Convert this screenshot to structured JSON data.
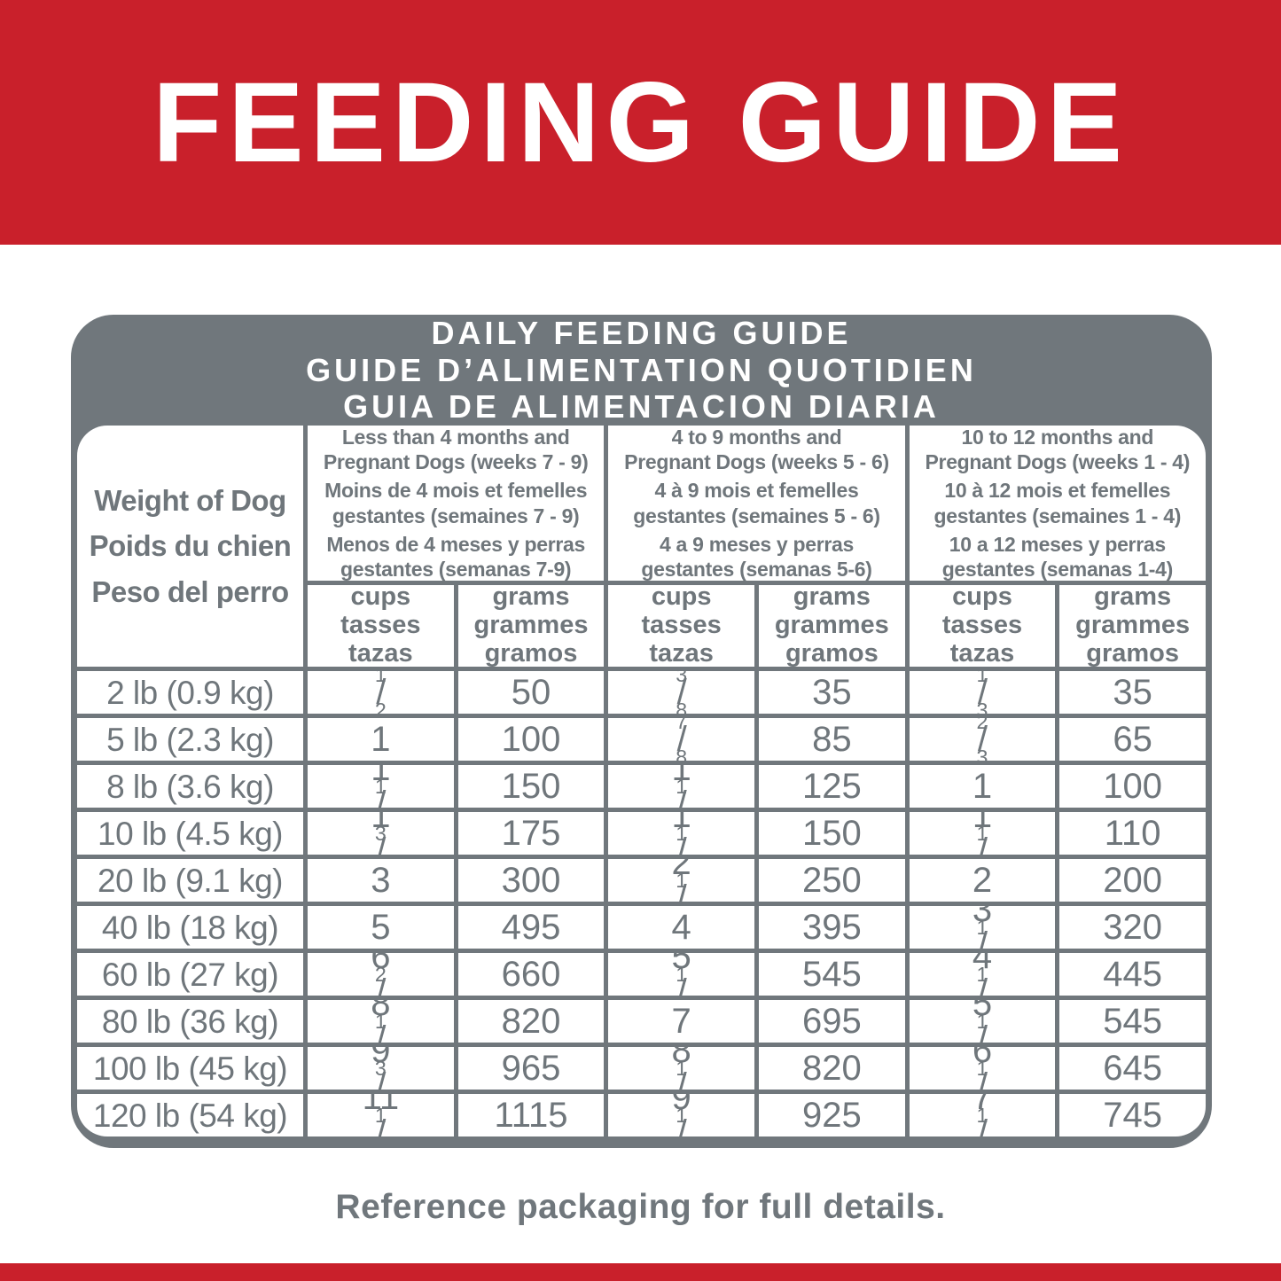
{
  "colors": {
    "brand_red": "#C9202B",
    "table_gray": "#70777C",
    "text_gray": "#6F767B"
  },
  "banner": {
    "title": "FEEDING GUIDE"
  },
  "table": {
    "title": "DAILY FEEDING GUIDE\nGUIDE D’ALIMENTATION QUOTIDIEN\nGUIA DE ALIMENTACION DIARIA",
    "weight_header": "Weight of Dog\nPoids du chien\nPeso del perro",
    "groups": [
      {
        "en": "Less than 4 months and\nPregnant Dogs (weeks 7 - 9)",
        "fr": "Moins de 4 mois et femelles\ngestantes (semaines 7 - 9)",
        "es": "Menos de 4 meses y perras\ngestantes (semanas 7-9)"
      },
      {
        "en": "4 to 9 months and\nPregnant Dogs (weeks 5 - 6)",
        "fr": "4 à 9 mois et femelles\ngestantes (semaines 5 - 6)",
        "es": "4 a 9 meses y perras\ngestantes (semanas 5-6)"
      },
      {
        "en": "10 to 12 months and\nPregnant Dogs (weeks 1 - 4)",
        "fr": "10 à 12 mois et femelles\ngestantes (semaines 1 - 4)",
        "es": "10 a 12 meses y perras\ngestantes (semanas 1-4)"
      }
    ],
    "unit_headers": {
      "cups": "cups\ntasses\ntazas",
      "grams": "grams\ngrammes\ngramos"
    },
    "rows": [
      {
        "weight": "2 lb (0.9 kg)",
        "c1": "1/2",
        "g1": "50",
        "c2": "3/8",
        "g2": "35",
        "c3": "1/3",
        "g3": "35"
      },
      {
        "weight": "5 lb (2.3 kg)",
        "c1": "1",
        "g1": "100",
        "c2": "7/8",
        "g2": "85",
        "c3": "2/3",
        "g3": "65"
      },
      {
        "weight": "8 lb (3.6 kg)",
        "c1": "1 1/2",
        "g1": "150",
        "c2": "1 1/4",
        "g2": "125",
        "c3": "1",
        "g3": "100"
      },
      {
        "weight": "10 lb (4.5 kg)",
        "c1": "1 3/4",
        "g1": "175",
        "c2": "1 1/2",
        "g2": "150",
        "c3": "1 1/8",
        "g3": "110"
      },
      {
        "weight": "20 lb (9.1 kg)",
        "c1": "3",
        "g1": "300",
        "c2": "2 1/2",
        "g2": "250",
        "c3": "2",
        "g3": "200"
      },
      {
        "weight": "40 lb (18 kg)",
        "c1": "5",
        "g1": "495",
        "c2": "4",
        "g2": "395",
        "c3": "3 1/4",
        "g3": "320"
      },
      {
        "weight": "60 lb (27 kg)",
        "c1": "6 2/3",
        "g1": "660",
        "c2": "5 1/2",
        "g2": "545",
        "c3": "4 1/2",
        "g3": "445"
      },
      {
        "weight": "80 lb (36 kg)",
        "c1": "8 1/4",
        "g1": "820",
        "c2": "7",
        "g2": "695",
        "c3": "5 1/2",
        "g3": "545"
      },
      {
        "weight": "100 lb (45 kg)",
        "c1": "9 3/4",
        "g1": "965",
        "c2": "8 1/4",
        "g2": "820",
        "c3": "6 1/2",
        "g3": "645"
      },
      {
        "weight": "120 lb (54 kg)",
        "c1": "11 1/4",
        "g1": "1115",
        "c2": "9 1/3",
        "g2": "925",
        "c3": "7 1/2",
        "g3": "745"
      }
    ]
  },
  "footer": {
    "note": "Reference packaging for full details."
  }
}
